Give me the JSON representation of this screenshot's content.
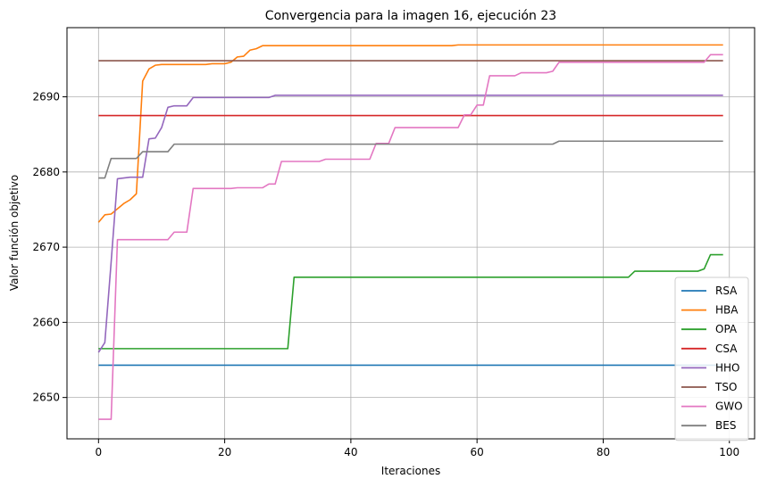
{
  "chart_data": {
    "type": "line",
    "title": "Convergencia para la imagen 16, ejecución 23",
    "xlabel": "Iteraciones",
    "ylabel": "Valor función objetivo",
    "xlim": [
      -5,
      104
    ],
    "ylim": [
      2644.5,
      2699.2
    ],
    "xticks": [
      0,
      20,
      40,
      60,
      80,
      100
    ],
    "yticks": [
      2650,
      2660,
      2670,
      2680,
      2690
    ],
    "grid": true,
    "legend_position": "bottom-right",
    "series": [
      {
        "name": "RSA",
        "color": "#1f77b4",
        "points": [
          [
            0,
            2654.3
          ],
          [
            99,
            2654.3
          ]
        ]
      },
      {
        "name": "HBA",
        "color": "#ff7f0e",
        "points": [
          [
            0,
            2673.3
          ],
          [
            1,
            2674.3
          ],
          [
            2,
            2674.4
          ],
          [
            3,
            2675.1
          ],
          [
            4,
            2675.8
          ],
          [
            5,
            2676.3
          ],
          [
            6,
            2677.1
          ],
          [
            7,
            2692.1
          ],
          [
            8,
            2693.7
          ],
          [
            9,
            2694.2
          ],
          [
            10,
            2694.3
          ],
          [
            17,
            2694.3
          ],
          [
            18,
            2694.4
          ],
          [
            20,
            2694.4
          ],
          [
            21,
            2694.6
          ],
          [
            22,
            2695.3
          ],
          [
            23,
            2695.4
          ],
          [
            24,
            2696.2
          ],
          [
            25,
            2696.4
          ],
          [
            26,
            2696.8
          ],
          [
            56,
            2696.8
          ],
          [
            57,
            2696.9
          ],
          [
            99,
            2696.9
          ]
        ]
      },
      {
        "name": "OPA",
        "color": "#2ca02c",
        "points": [
          [
            0,
            2656.5
          ],
          [
            30,
            2656.5
          ],
          [
            31,
            2666.0
          ],
          [
            84,
            2666.0
          ],
          [
            85,
            2666.8
          ],
          [
            95,
            2666.8
          ],
          [
            96,
            2667.1
          ],
          [
            97,
            2669.0
          ],
          [
            99,
            2669.0
          ]
        ]
      },
      {
        "name": "CSA",
        "color": "#d62728",
        "points": [
          [
            0,
            2687.5
          ],
          [
            99,
            2687.5
          ]
        ]
      },
      {
        "name": "HHO",
        "color": "#9467bd",
        "points": [
          [
            0,
            2656.0
          ],
          [
            1,
            2657.3
          ],
          [
            2,
            2668.0
          ],
          [
            3,
            2679.1
          ],
          [
            4,
            2679.2
          ],
          [
            5,
            2679.3
          ],
          [
            7,
            2679.3
          ],
          [
            8,
            2684.4
          ],
          [
            9,
            2684.5
          ],
          [
            10,
            2685.9
          ],
          [
            11,
            2688.6
          ],
          [
            12,
            2688.8
          ],
          [
            14,
            2688.8
          ],
          [
            15,
            2689.9
          ],
          [
            27,
            2689.9
          ],
          [
            28,
            2690.2
          ],
          [
            99,
            2690.2
          ]
        ]
      },
      {
        "name": "TSO",
        "color": "#8c564b",
        "points": [
          [
            0,
            2694.8
          ],
          [
            99,
            2694.8
          ]
        ]
      },
      {
        "name": "GWO",
        "color": "#e377c2",
        "points": [
          [
            0,
            2647.1
          ],
          [
            2,
            2647.1
          ],
          [
            3,
            2671.0
          ],
          [
            11,
            2671.0
          ],
          [
            12,
            2672.0
          ],
          [
            14,
            2672.0
          ],
          [
            15,
            2677.8
          ],
          [
            21,
            2677.8
          ],
          [
            22,
            2677.9
          ],
          [
            26,
            2677.9
          ],
          [
            27,
            2678.4
          ],
          [
            28,
            2678.4
          ],
          [
            29,
            2681.4
          ],
          [
            35,
            2681.4
          ],
          [
            36,
            2681.7
          ],
          [
            43,
            2681.7
          ],
          [
            44,
            2683.8
          ],
          [
            46,
            2683.8
          ],
          [
            47,
            2685.9
          ],
          [
            57,
            2685.9
          ],
          [
            58,
            2687.6
          ],
          [
            59,
            2687.6
          ],
          [
            60,
            2688.9
          ],
          [
            61,
            2688.9
          ],
          [
            62,
            2692.8
          ],
          [
            66,
            2692.8
          ],
          [
            67,
            2693.2
          ],
          [
            71,
            2693.2
          ],
          [
            72,
            2693.4
          ],
          [
            73,
            2694.6
          ],
          [
            96,
            2694.6
          ],
          [
            97,
            2695.6
          ],
          [
            99,
            2695.6
          ]
        ]
      },
      {
        "name": "BES",
        "color": "#7f7f7f",
        "points": [
          [
            0,
            2679.2
          ],
          [
            1,
            2679.2
          ],
          [
            2,
            2681.8
          ],
          [
            6,
            2681.8
          ],
          [
            7,
            2682.7
          ],
          [
            11,
            2682.7
          ],
          [
            12,
            2683.7
          ],
          [
            72,
            2683.7
          ],
          [
            73,
            2684.1
          ],
          [
            99,
            2684.1
          ]
        ]
      }
    ]
  }
}
